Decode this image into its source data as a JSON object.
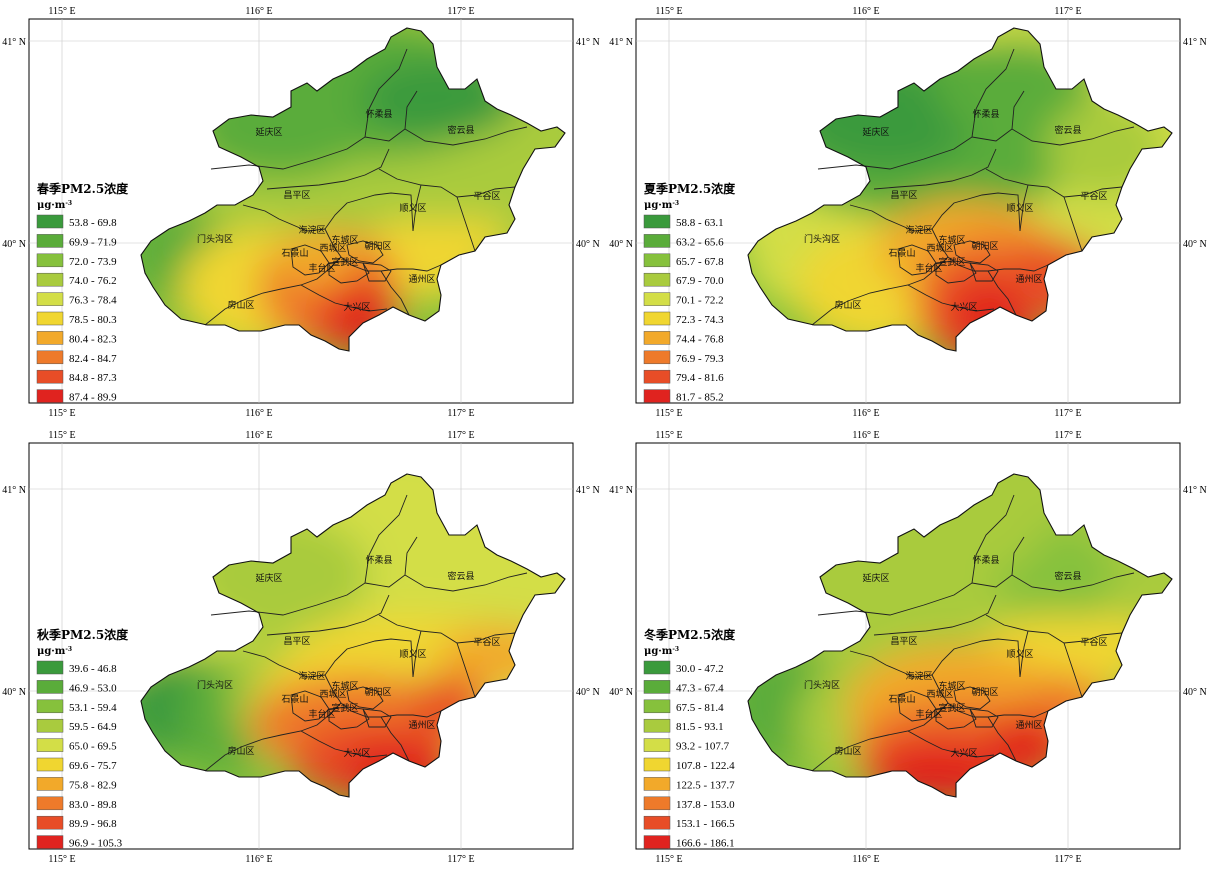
{
  "axes": {
    "lon_labels": [
      "115° E",
      "116° E",
      "117° E"
    ],
    "lat_labels": [
      "41° N",
      "40° N"
    ]
  },
  "panels": [
    {
      "title": "春季PM2.5浓度",
      "unit": "μg·m",
      "classes": [
        "53.8 - 69.8",
        "69.9 - 71.9",
        "72.0 - 73.9",
        "74.0 - 76.2",
        "76.3 - 78.4",
        "78.5 - 80.3",
        "80.4 - 82.3",
        "82.4 - 84.7",
        "84.8 - 87.3",
        "87.4 - 89.9"
      ],
      "scheme": "spring"
    },
    {
      "title": "夏季PM2.5浓度",
      "unit": "μg·m",
      "classes": [
        "58.8 - 63.1",
        "63.2 - 65.6",
        "65.7 - 67.8",
        "67.9 - 70.0",
        "70.1 - 72.2",
        "72.3 - 74.3",
        "74.4 - 76.8",
        "76.9 - 79.3",
        "79.4 - 81.6",
        "81.7 - 85.2"
      ],
      "scheme": "summer"
    },
    {
      "title": "秋季PM2.5浓度",
      "unit": "μg·m",
      "classes": [
        "39.6 - 46.8",
        "46.9 - 53.0",
        "53.1 - 59.4",
        "59.5 - 64.9",
        "65.0 - 69.5",
        "69.6 - 75.7",
        "75.8 - 82.9",
        "83.0 - 89.8",
        "89.9 - 96.8",
        "96.9 - 105.3"
      ],
      "scheme": "autumn"
    },
    {
      "title": "冬季PM2.5浓度",
      "unit": "μg·m",
      "classes": [
        "30.0 - 47.2",
        "47.3 - 67.4",
        "67.5 - 81.4",
        "81.5 - 93.1",
        "93.2 - 107.7",
        "107.8 - 122.4",
        "122.5 - 137.7",
        "137.8 - 153.0",
        "153.1 - 166.5",
        "166.6 - 186.1"
      ],
      "scheme": "winter"
    }
  ],
  "palette": [
    "#3a9a3c",
    "#5aac3a",
    "#86c13c",
    "#a9cb3e",
    "#d3de47",
    "#f0d630",
    "#f2a92a",
    "#ee7a2a",
    "#e84d27",
    "#e0231f"
  ],
  "district_labels": [
    "延庆区",
    "怀柔县",
    "密云县",
    "昌平区",
    "顺义区",
    "平谷区",
    "门头沟区",
    "海淀区",
    "东城区",
    "朝阳区",
    "西城区",
    "石景山",
    "宣武区",
    "丰台区",
    "通州区",
    "房山区",
    "大兴区"
  ]
}
